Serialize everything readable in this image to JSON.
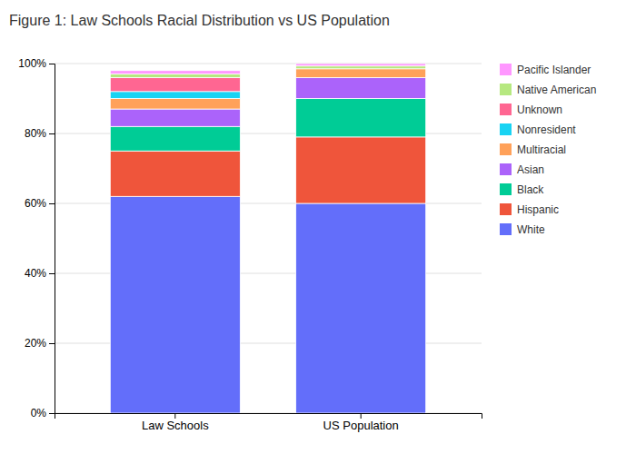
{
  "chart_data": {
    "type": "bar",
    "title": "Figure 1: Law Schools Racial Distribution vs US Population",
    "categories": [
      "Law Schools",
      "US Population"
    ],
    "series": [
      {
        "name": "White",
        "color": "#636EFA",
        "values": [
          62.0,
          60.0
        ]
      },
      {
        "name": "Hispanic",
        "color": "#EF553B",
        "values": [
          13.0,
          19.0
        ]
      },
      {
        "name": "Black",
        "color": "#00CC96",
        "values": [
          7.0,
          11.0
        ]
      },
      {
        "name": "Asian",
        "color": "#AB63FA",
        "values": [
          5.0,
          6.0
        ]
      },
      {
        "name": "Multiracial",
        "color": "#FFA15A",
        "values": [
          3.0,
          2.5
        ]
      },
      {
        "name": "Nonresident",
        "color": "#19D3F3",
        "values": [
          2.0,
          0.0
        ]
      },
      {
        "name": "Unknown",
        "color": "#FF6692",
        "values": [
          4.0,
          0.0
        ]
      },
      {
        "name": "Native American",
        "color": "#B6E880",
        "values": [
          1.0,
          0.8
        ]
      },
      {
        "name": "Pacific Islander",
        "color": "#FF97FF",
        "values": [
          1.0,
          0.7
        ]
      }
    ],
    "ylim": [
      0,
      100
    ],
    "yticks": [
      {
        "value": 0,
        "label": "0%"
      },
      {
        "value": 20,
        "label": "20%"
      },
      {
        "value": 40,
        "label": "40%"
      },
      {
        "value": 60,
        "label": "60%"
      },
      {
        "value": 80,
        "label": "80%"
      },
      {
        "value": 100,
        "label": "100%"
      }
    ],
    "stacked": true,
    "grid": true,
    "legend": "right"
  }
}
